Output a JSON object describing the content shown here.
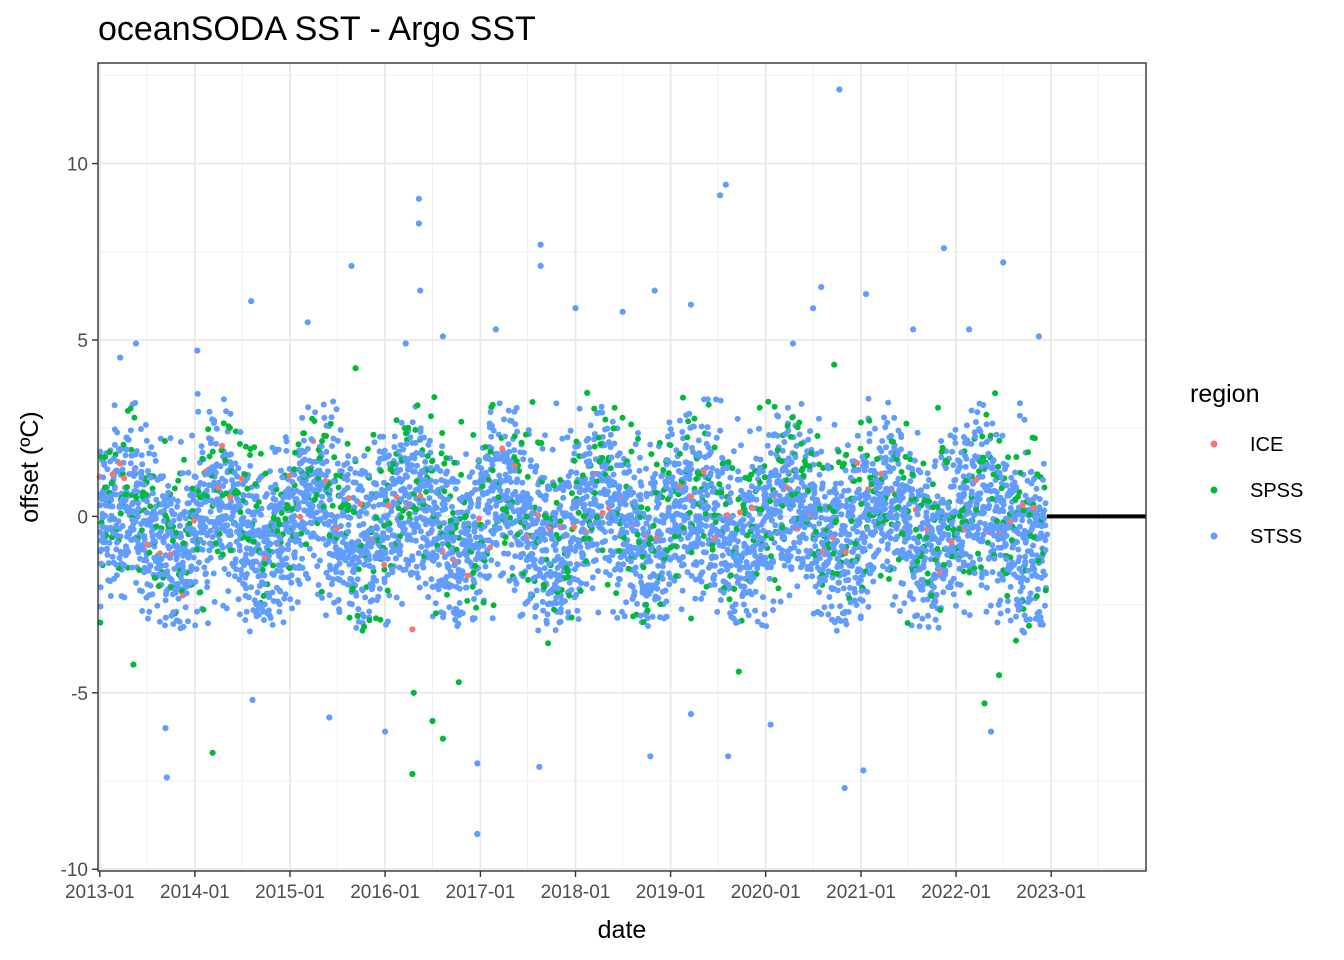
{
  "chart_data": {
    "type": "scatter",
    "title": "oceanSODA SST - Argo SST",
    "xlabel": "date",
    "ylabel": "offset (ºC)",
    "x_type": "date",
    "xlim": [
      "2012-12-25",
      "2023-12-31"
    ],
    "ylim": [
      -10.05,
      12.85
    ],
    "x_ticks": [
      "2013-01",
      "2014-01",
      "2015-01",
      "2016-01",
      "2017-01",
      "2018-01",
      "2019-01",
      "2020-01",
      "2021-01",
      "2022-01",
      "2023-01"
    ],
    "y_ticks": [
      -10,
      -5,
      0,
      5,
      10
    ],
    "y_tick_labels": [
      "-10",
      "-5",
      "0",
      "5",
      "10"
    ],
    "reference_line": {
      "y": 0,
      "x_from": "2022-12-15",
      "x_to": "2023-12-31",
      "color": "#000000"
    },
    "grid": true,
    "legend": {
      "title": "region",
      "position": "right"
    },
    "data_range": {
      "x_from": "2013-01-01",
      "x_to": "2022-12-15"
    },
    "series": [
      {
        "name": "STSS",
        "color": "#619CFF",
        "band": {
          "center": -0.2,
          "spread": 1.25,
          "upper_envelope": 3.2,
          "lower_envelope": -3.0
        },
        "points": [
          {
            "x": "2016-05-10",
            "y": 9.0
          },
          {
            "x": "2016-05-10",
            "y": 8.3
          },
          {
            "x": "2020-10-10",
            "y": 12.1
          },
          {
            "x": "2019-08-01",
            "y": 9.4
          },
          {
            "x": "2019-07-10",
            "y": 9.1
          },
          {
            "x": "2017-08-20",
            "y": 7.7
          },
          {
            "x": "2017-08-20",
            "y": 7.1
          },
          {
            "x": "2015-08-25",
            "y": 7.1
          },
          {
            "x": "2021-11-15",
            "y": 7.6
          },
          {
            "x": "2022-07-01",
            "y": 7.2
          },
          {
            "x": "2018-11-01",
            "y": 6.4
          },
          {
            "x": "2020-08-01",
            "y": 6.5
          },
          {
            "x": "2014-08-05",
            "y": 6.1
          },
          {
            "x": "2021-01-20",
            "y": 6.3
          },
          {
            "x": "2016-05-15",
            "y": 6.4
          },
          {
            "x": "2016-12-20",
            "y": -9.0
          },
          {
            "x": "2013-09-15",
            "y": -7.4
          },
          {
            "x": "2016-12-20",
            "y": -7.0
          },
          {
            "x": "2020-10-30",
            "y": -7.7
          },
          {
            "x": "2021-01-10",
            "y": -7.2
          },
          {
            "x": "2017-08-15",
            "y": -7.1
          },
          {
            "x": "2019-08-10",
            "y": -6.8
          },
          {
            "x": "2018-10-15",
            "y": -6.8
          },
          {
            "x": "2013-09-10",
            "y": -6.0
          },
          {
            "x": "2022-05-15",
            "y": -6.1
          },
          {
            "x": "2019-03-20",
            "y": -5.6
          },
          {
            "x": "2015-06-01",
            "y": -5.7
          },
          {
            "x": "2014-08-10",
            "y": -5.2
          },
          {
            "x": "2016-01-01",
            "y": -6.1
          },
          {
            "x": "2020-01-20",
            "y": -5.9
          },
          {
            "x": "2013-05-20",
            "y": 4.9
          },
          {
            "x": "2013-03-20",
            "y": 4.5
          },
          {
            "x": "2014-01-10",
            "y": 4.7
          },
          {
            "x": "2015-03-10",
            "y": 5.5
          },
          {
            "x": "2016-03-20",
            "y": 4.9
          },
          {
            "x": "2017-03-01",
            "y": 5.3
          },
          {
            "x": "2018-01-01",
            "y": 5.9
          },
          {
            "x": "2018-07-01",
            "y": 5.8
          },
          {
            "x": "2019-03-20",
            "y": 6.0
          },
          {
            "x": "2020-07-01",
            "y": 5.9
          },
          {
            "x": "2021-07-20",
            "y": 5.3
          },
          {
            "x": "2022-02-20",
            "y": 5.3
          },
          {
            "x": "2022-11-15",
            "y": 5.1
          },
          {
            "x": "2016-08-10",
            "y": 5.1
          },
          {
            "x": "2020-04-15",
            "y": 4.9
          }
        ]
      },
      {
        "name": "SPSS",
        "color": "#00BA38",
        "band": {
          "center": 0.2,
          "spread": 1.35,
          "upper_envelope": 3.3,
          "lower_envelope": -3.3
        },
        "points": [
          {
            "x": "2016-04-15",
            "y": -7.3
          },
          {
            "x": "2014-03-10",
            "y": -6.7
          },
          {
            "x": "2016-08-10",
            "y": -6.3
          },
          {
            "x": "2016-07-01",
            "y": -5.8
          },
          {
            "x": "2015-09-10",
            "y": 4.2
          },
          {
            "x": "2020-09-20",
            "y": 4.3
          },
          {
            "x": "2013-05-10",
            "y": -4.2
          },
          {
            "x": "2016-10-10",
            "y": -4.7
          },
          {
            "x": "2018-02-15",
            "y": 3.5
          },
          {
            "x": "2016-04-20",
            "y": -5.0
          },
          {
            "x": "2022-04-20",
            "y": -5.3
          },
          {
            "x": "2022-06-15",
            "y": -4.5
          },
          {
            "x": "2019-09-20",
            "y": -4.4
          }
        ]
      },
      {
        "name": "ICE",
        "color": "#F8766D",
        "band": {
          "center": 0.1,
          "spread": 0.75,
          "upper_envelope": 2.0,
          "lower_envelope": -2.4
        },
        "points": [
          {
            "x": "2013-03-20",
            "y": 1.5
          },
          {
            "x": "2014-04-15",
            "y": 2.0
          },
          {
            "x": "2016-04-15",
            "y": -3.2
          },
          {
            "x": "2020-03-15",
            "y": 1.4
          },
          {
            "x": "2018-04-15",
            "y": 0.1
          },
          {
            "x": "2016-01-15",
            "y": 0.3
          }
        ]
      }
    ]
  }
}
